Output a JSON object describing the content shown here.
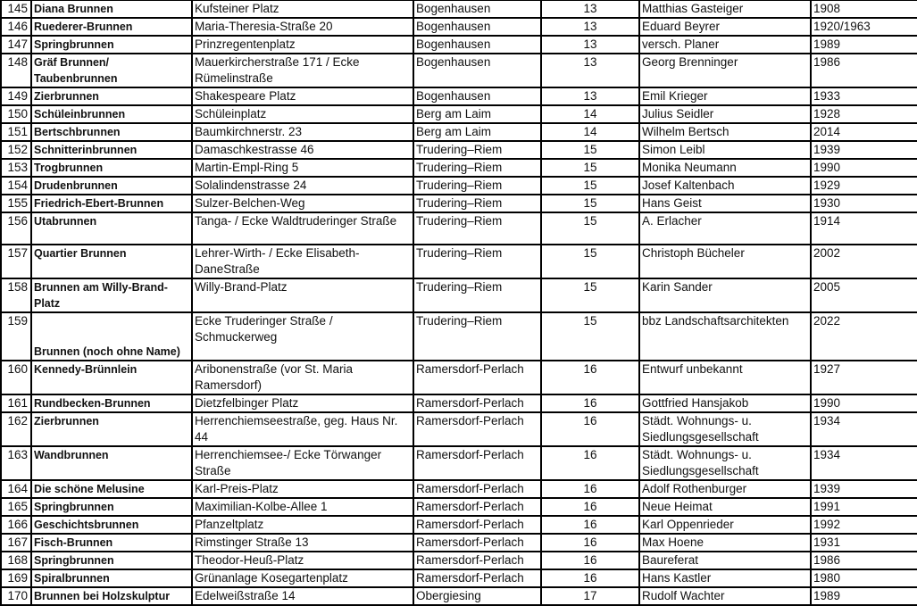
{
  "table": {
    "rows": [
      {
        "nr": "145",
        "name": "Diana Brunnen",
        "address": "Kufsteiner Platz",
        "district": "Bogenhausen",
        "bezirk": "13",
        "artist": "Matthias Gasteiger",
        "year": "1908"
      },
      {
        "nr": "146",
        "name": "Ruederer-Brunnen",
        "address": "Maria-Theresia-Straße 20",
        "district": "Bogenhausen",
        "bezirk": "13",
        "artist": "Eduard Beyrer",
        "year": "1920/1963"
      },
      {
        "nr": "147",
        "name": "Springbrunnen",
        "address": "Prinzregentenplatz",
        "district": "Bogenhausen",
        "bezirk": "13",
        "artist": "versch. Planer",
        "year": "1989"
      },
      {
        "nr": "148",
        "name": "Gräf Brunnen/ Taubenbrunnen",
        "address": "Mauerkircherstraße 171 / Ecke Rümelinstraße",
        "district": "Bogenhausen",
        "bezirk": "13",
        "artist": "Georg Brenninger",
        "year": "1986"
      },
      {
        "nr": "149",
        "name": "Zierbrunnen",
        "address": "Shakespeare Platz",
        "district": "Bogenhausen",
        "bezirk": "13",
        "artist": "Emil Krieger",
        "year": "1933"
      },
      {
        "nr": "150",
        "name": "Schüleinbrunnen",
        "address": "Schüleinplatz",
        "district": "Berg am Laim",
        "bezirk": "14",
        "artist": "Julius Seidler",
        "year": "1928"
      },
      {
        "nr": "151",
        "name": "Bertschbrunnen",
        "address": "Baumkirchnerstr. 23",
        "district": "Berg am Laim",
        "bezirk": "14",
        "artist": "Wilhelm Bertsch",
        "year": "2014"
      },
      {
        "nr": "152",
        "name": "Schnitterinbrunnen",
        "address": "Damaschkestrasse 46",
        "district": "Trudering–Riem",
        "bezirk": "15",
        "artist": "Simon Leibl",
        "year": "1939"
      },
      {
        "nr": "153",
        "name": "Trogbrunnen",
        "address": "Martin-Empl-Ring 5",
        "district": "Trudering–Riem",
        "bezirk": "15",
        "artist": "Monika Neumann",
        "year": "1990"
      },
      {
        "nr": "154",
        "name": "Drudenbrunnen",
        "address": "Solalindenstrasse 24",
        "district": "Trudering–Riem",
        "bezirk": "15",
        "artist": "Josef Kaltenbach",
        "year": "1929"
      },
      {
        "nr": "155",
        "name": "Friedrich-Ebert-Brunnen",
        "address": "Sulzer-Belchen-Weg",
        "district": "Trudering–Riem",
        "bezirk": "15",
        "artist": "Hans Geist",
        "year": "1930"
      },
      {
        "nr": "156",
        "name": "Utabrunnen",
        "address": "Tanga- / Ecke Waldtruderinger Straße",
        "district": "Trudering–Riem",
        "bezirk": "15",
        "artist": "A. Erlacher",
        "year": "1914"
      },
      {
        "nr": "157",
        "name": "Quartier Brunnen",
        "address": "Lehrer-Wirth- / Ecke Elisabeth-DaneStraße",
        "district": "Trudering–Riem",
        "bezirk": "15",
        "artist": "Christoph Bücheler",
        "year": "2002"
      },
      {
        "nr": "158",
        "name": "Brunnen am Willy-Brand-Platz",
        "address": "Willy-Brand-Platz",
        "district": "Trudering–Riem",
        "bezirk": "15",
        "artist": "Karin Sander",
        "year": "2005"
      },
      {
        "nr": "159",
        "name": "Brunnen (noch ohne Name)",
        "address": "Ecke Truderinger Straße / Schmuckerweg",
        "district": "Trudering–Riem",
        "bezirk": "15",
        "artist": "bbz Landschaftsarchitekten",
        "year": "2022"
      },
      {
        "nr": "160",
        "name": "Kennedy-Brünnlein",
        "address": "Aribonenstraße (vor St. Maria Ramersdorf)",
        "district": "Ramersdorf-Perlach",
        "bezirk": "16",
        "artist": "Entwurf unbekannt",
        "year": "1927"
      },
      {
        "nr": "161",
        "name": "Rundbecken-Brunnen",
        "address": "Dietzfelbinger Platz",
        "district": "Ramersdorf-Perlach",
        "bezirk": "16",
        "artist": "Gottfried Hansjakob",
        "year": "1990"
      },
      {
        "nr": "162",
        "name": "Zierbrunnen",
        "address": "Herrenchiemseestraße, geg. Haus Nr. 44",
        "district": "Ramersdorf-Perlach",
        "bezirk": "16",
        "artist": "Städt. Wohnungs- u. Siedlungsgesellschaft",
        "year": "1934"
      },
      {
        "nr": "163",
        "name": "Wandbrunnen",
        "address": "Herrenchiemsee-/ Ecke Törwanger Straße",
        "district": "Ramersdorf-Perlach",
        "bezirk": "16",
        "artist": "Städt. Wohnungs- u. Siedlungsgesellschaft",
        "year": "1934"
      },
      {
        "nr": "164",
        "name": "Die schöne Melusine",
        "address": "Karl-Preis-Platz",
        "district": "Ramersdorf-Perlach",
        "bezirk": "16",
        "artist": "Adolf Rothenburger",
        "year": "1939"
      },
      {
        "nr": "165",
        "name": "Springbrunnen",
        "address": "Maximilian-Kolbe-Allee 1",
        "district": "Ramersdorf-Perlach",
        "bezirk": "16",
        "artist": "Neue Heimat",
        "year": "1991"
      },
      {
        "nr": "166",
        "name": "Geschichtsbrunnen",
        "address": "Pfanzeltplatz",
        "district": "Ramersdorf-Perlach",
        "bezirk": "16",
        "artist": "Karl Oppenrieder",
        "year": "1992"
      },
      {
        "nr": "167",
        "name": "Fisch-Brunnen",
        "address": "Rimstinger Straße 13",
        "district": "Ramersdorf-Perlach",
        "bezirk": "16",
        "artist": "Max Hoene",
        "year": "1931"
      },
      {
        "nr": "168",
        "name": "Springbrunnen",
        "address": "Theodor-Heuß-Platz",
        "district": "Ramersdorf-Perlach",
        "bezirk": "16",
        "artist": "Baureferat",
        "year": "1986"
      },
      {
        "nr": "169",
        "name": "Spiralbrunnen",
        "address": "Grünanlage Kosegartenplatz",
        "district": "Ramersdorf-Perlach",
        "bezirk": "16",
        "artist": "Hans Kastler",
        "year": "1980"
      },
      {
        "nr": "170",
        "name": "Brunnen bei Holzskulptur",
        "address": "Edelweißstraße 14",
        "district": "Obergiesing",
        "bezirk": "17",
        "artist": "Rudolf Wachter",
        "year": "1989"
      }
    ]
  }
}
